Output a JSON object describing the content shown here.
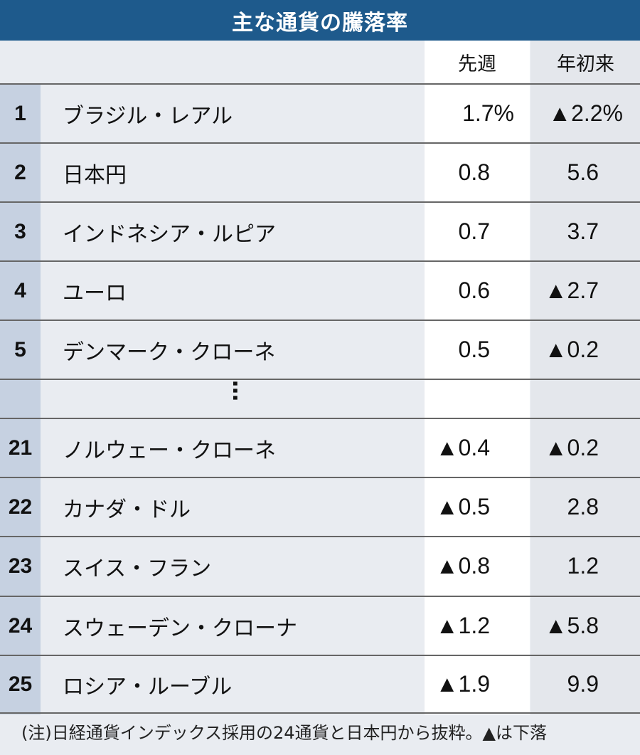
{
  "title": "主な通貨の騰落率",
  "columns": {
    "week": "先週",
    "ytd": "年初来"
  },
  "ellipsis": "…",
  "note": "(注)日経通貨インデックス採用の24通貨と日本円から抜粋。▲は下落",
  "colors": {
    "header": "#1e5a8c",
    "rank_column": "#c6d1e1",
    "background": "#e9ecf1"
  },
  "rows": [
    {
      "rank": "1",
      "name": "ブラジル・レアル",
      "week": "1.7%",
      "ytd": "▲2.2%"
    },
    {
      "rank": "2",
      "name": "日本円",
      "week": "0.8",
      "ytd": "5.6"
    },
    {
      "rank": "3",
      "name": "インドネシア・ルピア",
      "week": "0.7",
      "ytd": "3.7"
    },
    {
      "rank": "4",
      "name": "ユーロ",
      "week": "0.6",
      "ytd": "▲2.7"
    },
    {
      "rank": "5",
      "name": "デンマーク・クローネ",
      "week": "0.5",
      "ytd": "▲0.2"
    },
    {
      "rank": "21",
      "name": "ノルウェー・クローネ",
      "week": "▲0.4",
      "ytd": "▲0.2"
    },
    {
      "rank": "22",
      "name": "カナダ・ドル",
      "week": "▲0.5",
      "ytd": "2.8"
    },
    {
      "rank": "23",
      "name": "スイス・フラン",
      "week": "▲0.8",
      "ytd": "1.2"
    },
    {
      "rank": "24",
      "name": "スウェーデン・クローナ",
      "week": "▲1.2",
      "ytd": "▲5.8"
    },
    {
      "rank": "25",
      "name": "ロシア・ルーブル",
      "week": "▲1.9",
      "ytd": "9.9"
    }
  ],
  "chart_data": {
    "type": "table",
    "title": "主な通貨の騰落率",
    "columns": [
      "",
      "",
      "先週",
      "年初来"
    ],
    "unit": "%",
    "rows": [
      [
        "1",
        "ブラジル・レアル",
        1.7,
        -2.2
      ],
      [
        "2",
        "日本円",
        0.8,
        5.6
      ],
      [
        "3",
        "インドネシア・ルピア",
        0.7,
        3.7
      ],
      [
        "4",
        "ユーロ",
        0.6,
        -2.7
      ],
      [
        "5",
        "デンマーク・クローネ",
        0.5,
        -0.2
      ],
      [
        "21",
        "ノルウェー・クローネ",
        -0.4,
        -0.2
      ],
      [
        "22",
        "カナダ・ドル",
        -0.5,
        2.8
      ],
      [
        "23",
        "スイス・フラン",
        -0.8,
        1.2
      ],
      [
        "24",
        "スウェーデン・クローナ",
        -1.2,
        -5.8
      ],
      [
        "25",
        "ロシア・ルーブル",
        -1.9,
        9.9
      ]
    ],
    "note": "(注)日経通貨インデックス採用の24通貨と日本円から抜粋。▲は下落"
  }
}
